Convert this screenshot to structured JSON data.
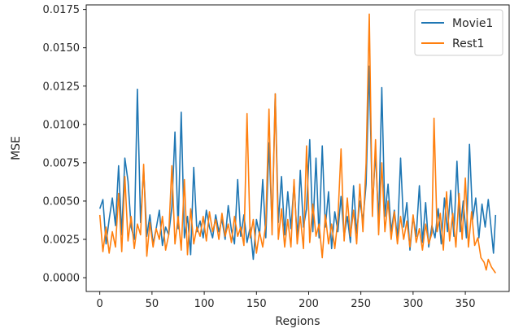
{
  "chart_data": {
    "type": "line",
    "title": "",
    "xlabel": "Regions",
    "ylabel": "MSE",
    "xlim": [
      -13,
      392
    ],
    "ylim": [
      -0.0009,
      0.0178
    ],
    "xticks": [
      0,
      50,
      100,
      150,
      200,
      250,
      300,
      350
    ],
    "xtick_labels": [
      "0",
      "50",
      "100",
      "150",
      "200",
      "250",
      "300",
      "350"
    ],
    "yticks": [
      0.0,
      0.0025,
      0.005,
      0.0075,
      0.01,
      0.0125,
      0.015,
      0.0175
    ],
    "ytick_labels": [
      "0.0000",
      "0.0025",
      "0.0050",
      "0.0075",
      "0.0100",
      "0.0125",
      "0.0150",
      "0.0175"
    ],
    "grid": false,
    "legend_position": "upper-right",
    "series": [
      {
        "name": "Movie1",
        "color": "#1f77b4",
        "points": [
          [
            0,
            0.0045
          ],
          [
            3,
            0.0051
          ],
          [
            6,
            0.0022
          ],
          [
            9,
            0.0038
          ],
          [
            12,
            0.0052
          ],
          [
            15,
            0.0034
          ],
          [
            18,
            0.0073
          ],
          [
            21,
            0.0028
          ],
          [
            24,
            0.0078
          ],
          [
            27,
            0.0063
          ],
          [
            30,
            0.0033
          ],
          [
            33,
            0.0025
          ],
          [
            36,
            0.0123
          ],
          [
            39,
            0.0036
          ],
          [
            42,
            0.0071
          ],
          [
            45,
            0.0027
          ],
          [
            48,
            0.0041
          ],
          [
            51,
            0.0022
          ],
          [
            54,
            0.0032
          ],
          [
            57,
            0.0044
          ],
          [
            60,
            0.0021
          ],
          [
            63,
            0.0033
          ],
          [
            66,
            0.0028
          ],
          [
            69,
            0.0046
          ],
          [
            72,
            0.0095
          ],
          [
            75,
            0.0032
          ],
          [
            78,
            0.0108
          ],
          [
            81,
            0.0026
          ],
          [
            84,
            0.004
          ],
          [
            87,
            0.0015
          ],
          [
            90,
            0.0072
          ],
          [
            93,
            0.003
          ],
          [
            96,
            0.0037
          ],
          [
            99,
            0.0026
          ],
          [
            102,
            0.0044
          ],
          [
            105,
            0.0033
          ],
          [
            108,
            0.0026
          ],
          [
            111,
            0.0041
          ],
          [
            114,
            0.003
          ],
          [
            117,
            0.0038
          ],
          [
            120,
            0.0025
          ],
          [
            123,
            0.0047
          ],
          [
            126,
            0.0031
          ],
          [
            129,
            0.0022
          ],
          [
            132,
            0.0064
          ],
          [
            135,
            0.0027
          ],
          [
            138,
            0.0041
          ],
          [
            141,
            0.0023
          ],
          [
            144,
            0.0033
          ],
          [
            147,
            0.0012
          ],
          [
            150,
            0.0038
          ],
          [
            153,
            0.0028
          ],
          [
            156,
            0.0064
          ],
          [
            159,
            0.0026
          ],
          [
            162,
            0.0088
          ],
          [
            165,
            0.0033
          ],
          [
            168,
            0.012
          ],
          [
            171,
            0.0036
          ],
          [
            174,
            0.0066
          ],
          [
            177,
            0.0028
          ],
          [
            180,
            0.0056
          ],
          [
            183,
            0.0032
          ],
          [
            186,
            0.0062
          ],
          [
            189,
            0.0025
          ],
          [
            192,
            0.007
          ],
          [
            195,
            0.0033
          ],
          [
            198,
            0.0045
          ],
          [
            201,
            0.009
          ],
          [
            204,
            0.003
          ],
          [
            207,
            0.0078
          ],
          [
            210,
            0.0026
          ],
          [
            213,
            0.0086
          ],
          [
            216,
            0.0033
          ],
          [
            219,
            0.0056
          ],
          [
            222,
            0.0019
          ],
          [
            225,
            0.0043
          ],
          [
            228,
            0.003
          ],
          [
            231,
            0.0053
          ],
          [
            234,
            0.0027
          ],
          [
            237,
            0.004
          ],
          [
            240,
            0.0023
          ],
          [
            243,
            0.006
          ],
          [
            246,
            0.0029
          ],
          [
            249,
            0.005
          ],
          [
            252,
            0.0037
          ],
          [
            255,
            0.0061
          ],
          [
            258,
            0.0138
          ],
          [
            261,
            0.0045
          ],
          [
            264,
            0.0082
          ],
          [
            267,
            0.0035
          ],
          [
            270,
            0.0124
          ],
          [
            273,
            0.004
          ],
          [
            276,
            0.0061
          ],
          [
            279,
            0.003
          ],
          [
            282,
            0.0044
          ],
          [
            285,
            0.0026
          ],
          [
            288,
            0.0078
          ],
          [
            291,
            0.0033
          ],
          [
            294,
            0.0049
          ],
          [
            297,
            0.0018
          ],
          [
            300,
            0.004
          ],
          [
            303,
            0.0027
          ],
          [
            306,
            0.006
          ],
          [
            309,
            0.0023
          ],
          [
            312,
            0.0049
          ],
          [
            315,
            0.002
          ],
          [
            318,
            0.0034
          ],
          [
            321,
            0.0026
          ],
          [
            324,
            0.0045
          ],
          [
            327,
            0.0022
          ],
          [
            330,
            0.0052
          ],
          [
            333,
            0.003
          ],
          [
            336,
            0.0057
          ],
          [
            339,
            0.0027
          ],
          [
            342,
            0.0076
          ],
          [
            345,
            0.003
          ],
          [
            348,
            0.005
          ],
          [
            351,
            0.0026
          ],
          [
            354,
            0.0087
          ],
          [
            357,
            0.0038
          ],
          [
            360,
            0.0052
          ],
          [
            363,
            0.0026
          ],
          [
            366,
            0.0048
          ],
          [
            369,
            0.0033
          ],
          [
            372,
            0.0051
          ],
          [
            375,
            0.003
          ],
          [
            377,
            0.0016
          ],
          [
            379,
            0.0041
          ]
        ]
      },
      {
        "name": "Rest1",
        "color": "#ff7f0e",
        "points": [
          [
            0,
            0.0041
          ],
          [
            3,
            0.0017
          ],
          [
            6,
            0.0033
          ],
          [
            9,
            0.0016
          ],
          [
            12,
            0.003
          ],
          [
            15,
            0.002
          ],
          [
            18,
            0.0055
          ],
          [
            21,
            0.0017
          ],
          [
            24,
            0.0066
          ],
          [
            27,
            0.0024
          ],
          [
            30,
            0.004
          ],
          [
            33,
            0.0019
          ],
          [
            36,
            0.0035
          ],
          [
            39,
            0.0028
          ],
          [
            42,
            0.0074
          ],
          [
            45,
            0.0014
          ],
          [
            48,
            0.0036
          ],
          [
            51,
            0.002
          ],
          [
            54,
            0.0032
          ],
          [
            57,
            0.0025
          ],
          [
            60,
            0.004
          ],
          [
            63,
            0.0018
          ],
          [
            66,
            0.0028
          ],
          [
            69,
            0.0073
          ],
          [
            72,
            0.0022
          ],
          [
            75,
            0.004
          ],
          [
            78,
            0.0018
          ],
          [
            81,
            0.0064
          ],
          [
            84,
            0.0015
          ],
          [
            87,
            0.0045
          ],
          [
            90,
            0.0022
          ],
          [
            93,
            0.0033
          ],
          [
            96,
            0.0027
          ],
          [
            99,
            0.004
          ],
          [
            102,
            0.0024
          ],
          [
            105,
            0.0043
          ],
          [
            108,
            0.003
          ],
          [
            111,
            0.0038
          ],
          [
            114,
            0.0025
          ],
          [
            117,
            0.0042
          ],
          [
            120,
            0.0027
          ],
          [
            123,
            0.0035
          ],
          [
            126,
            0.0023
          ],
          [
            129,
            0.004
          ],
          [
            132,
            0.0027
          ],
          [
            135,
            0.0033
          ],
          [
            138,
            0.0021
          ],
          [
            141,
            0.0107
          ],
          [
            144,
            0.0026
          ],
          [
            147,
            0.0038
          ],
          [
            150,
            0.0016
          ],
          [
            153,
            0.003
          ],
          [
            156,
            0.002
          ],
          [
            159,
            0.0035
          ],
          [
            162,
            0.011
          ],
          [
            165,
            0.0028
          ],
          [
            168,
            0.012
          ],
          [
            171,
            0.0025
          ],
          [
            174,
            0.0045
          ],
          [
            177,
            0.002
          ],
          [
            180,
            0.0038
          ],
          [
            183,
            0.002
          ],
          [
            186,
            0.0064
          ],
          [
            189,
            0.0022
          ],
          [
            192,
            0.004
          ],
          [
            195,
            0.0019
          ],
          [
            198,
            0.0086
          ],
          [
            201,
            0.0023
          ],
          [
            204,
            0.0048
          ],
          [
            207,
            0.0027
          ],
          [
            210,
            0.0035
          ],
          [
            213,
            0.0013
          ],
          [
            216,
            0.0041
          ],
          [
            219,
            0.0022
          ],
          [
            222,
            0.0035
          ],
          [
            225,
            0.0019
          ],
          [
            228,
            0.0038
          ],
          [
            231,
            0.0084
          ],
          [
            234,
            0.0024
          ],
          [
            237,
            0.0052
          ],
          [
            240,
            0.0027
          ],
          [
            243,
            0.0044
          ],
          [
            246,
            0.0022
          ],
          [
            249,
            0.0061
          ],
          [
            252,
            0.003
          ],
          [
            255,
            0.0075
          ],
          [
            258,
            0.0172
          ],
          [
            261,
            0.004
          ],
          [
            264,
            0.009
          ],
          [
            267,
            0.0028
          ],
          [
            270,
            0.0075
          ],
          [
            273,
            0.003
          ],
          [
            276,
            0.005
          ],
          [
            279,
            0.0025
          ],
          [
            282,
            0.0043
          ],
          [
            285,
            0.0022
          ],
          [
            288,
            0.004
          ],
          [
            291,
            0.0025
          ],
          [
            294,
            0.0037
          ],
          [
            297,
            0.002
          ],
          [
            300,
            0.0041
          ],
          [
            303,
            0.0023
          ],
          [
            306,
            0.0032
          ],
          [
            309,
            0.0018
          ],
          [
            312,
            0.0035
          ],
          [
            315,
            0.0022
          ],
          [
            318,
            0.0029
          ],
          [
            320,
            0.0104
          ],
          [
            323,
            0.003
          ],
          [
            326,
            0.0042
          ],
          [
            329,
            0.0018
          ],
          [
            332,
            0.0056
          ],
          [
            335,
            0.0024
          ],
          [
            338,
            0.0042
          ],
          [
            341,
            0.002
          ],
          [
            344,
            0.0055
          ],
          [
            347,
            0.0025
          ],
          [
            350,
            0.0065
          ],
          [
            353,
            0.002
          ],
          [
            356,
            0.0043
          ],
          [
            359,
            0.0021
          ],
          [
            362,
            0.0026
          ],
          [
            365,
            0.0013
          ],
          [
            368,
            0.001
          ],
          [
            370,
            0.0005
          ],
          [
            372,
            0.0012
          ],
          [
            375,
            0.0007
          ],
          [
            378,
            0.0004
          ],
          [
            379,
            0.0003
          ]
        ]
      }
    ]
  }
}
